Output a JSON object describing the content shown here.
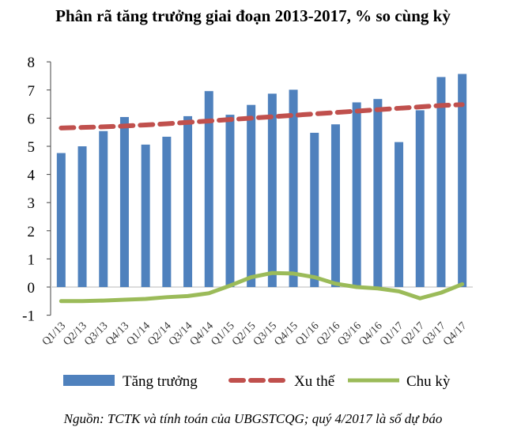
{
  "chart_data": {
    "type": "bar",
    "title": "Phân rã tăng trưởng giai đoạn 2013-2017, % so cùng kỳ",
    "categories": [
      "Q1/13",
      "Q2/13",
      "Q3/13",
      "Q4/13",
      "Q1/14",
      "Q2/14",
      "Q3/14",
      "Q4/14",
      "Q1/15",
      "Q2/15",
      "Q3/15",
      "Q4/15",
      "Q1/16",
      "Q2/16",
      "Q3/16",
      "Q4/16",
      "Q1/17",
      "Q2/17",
      "Q3/17",
      "Q4/17"
    ],
    "series": [
      {
        "name": "Tăng trưởng",
        "kind": "bar",
        "color": "#4f81bd",
        "values": [
          4.76,
          5.0,
          5.54,
          6.04,
          5.06,
          5.34,
          6.07,
          6.96,
          6.12,
          6.47,
          6.87,
          7.01,
          5.48,
          5.78,
          6.56,
          6.68,
          5.15,
          6.28,
          7.46,
          7.57
        ]
      },
      {
        "name": "Xu thế",
        "kind": "dashed-line",
        "color": "#c0504d",
        "values": [
          5.65,
          5.67,
          5.69,
          5.72,
          5.76,
          5.8,
          5.85,
          5.9,
          5.95,
          6.0,
          6.05,
          6.1,
          6.15,
          6.2,
          6.25,
          6.3,
          6.35,
          6.4,
          6.45,
          6.48
        ]
      },
      {
        "name": "Chu kỳ",
        "kind": "line",
        "color": "#9bbb59",
        "values": [
          -0.5,
          -0.5,
          -0.48,
          -0.45,
          -0.42,
          -0.36,
          -0.32,
          -0.22,
          0.05,
          0.35,
          0.5,
          0.48,
          0.35,
          0.12,
          0.0,
          -0.05,
          -0.15,
          -0.4,
          -0.2,
          0.1
        ]
      }
    ],
    "ylim": [
      -1,
      8
    ],
    "yticks": [
      "-1",
      "0",
      "1",
      "2",
      "3",
      "4",
      "5",
      "6",
      "7",
      "8"
    ],
    "xlabel": "",
    "ylabel": "",
    "legend": "bottom",
    "grid": false
  },
  "source": "Nguồn: TCTK và tính toán của UBGSTCQG; quý 4/2017 là số dự báo"
}
